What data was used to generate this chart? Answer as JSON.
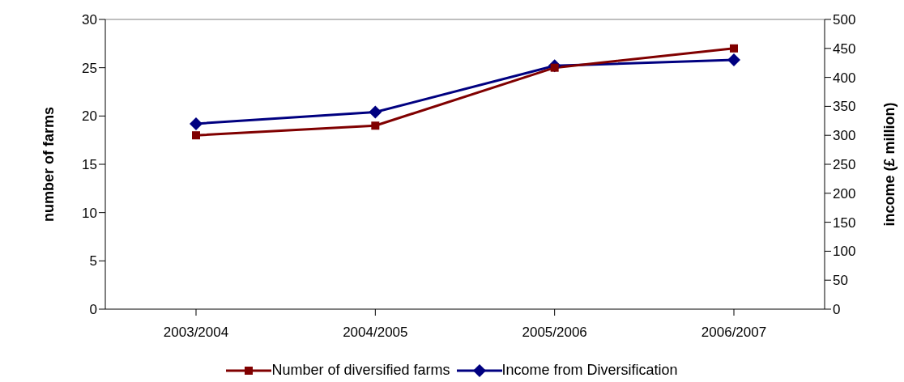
{
  "chart_data": {
    "type": "line",
    "categories": [
      "2003/2004",
      "2004/2005",
      "2005/2006",
      "2006/2007"
    ],
    "series": [
      {
        "name": "Number of diversified farms",
        "color": "#800000",
        "values": [
          18,
          19,
          25,
          27
        ],
        "marker": "square"
      },
      {
        "name": "Income from Diversification",
        "color": "#000080",
        "values": [
          320,
          340,
          420,
          430
        ],
        "axis": "y2",
        "marker": "diamond"
      }
    ],
    "ylabel": "number of farms",
    "y2label": "income (£ million)",
    "ylim": [
      0,
      30
    ],
    "yticks": [
      0,
      5,
      10,
      15,
      20,
      25,
      30
    ],
    "y2lim": [
      0,
      500
    ],
    "y2ticks": [
      0,
      50,
      100,
      150,
      200,
      250,
      300,
      350,
      400,
      450,
      500
    ],
    "grid": false,
    "legend": "bottom"
  }
}
